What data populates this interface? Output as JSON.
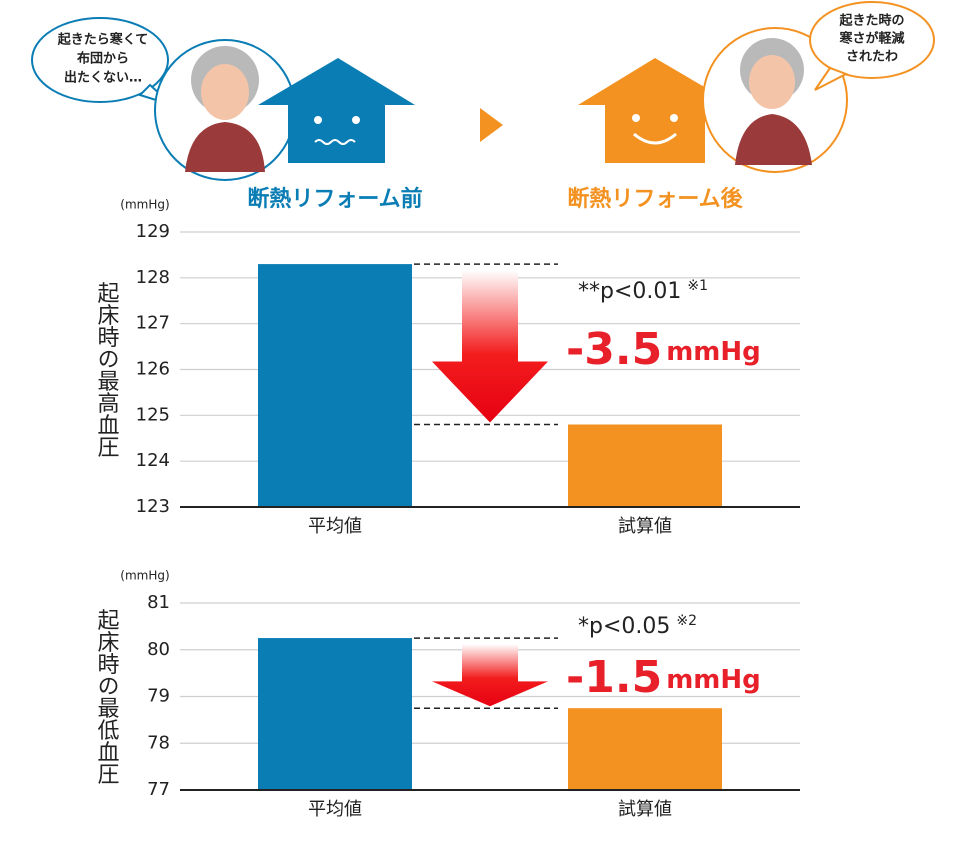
{
  "header": {
    "bubble_before": [
      "起きたら寒くて",
      "布団から",
      "出たくない…"
    ],
    "bubble_after": [
      "起きた時の",
      "寒さが軽減",
      "されたわ"
    ],
    "label_before": "断熱リフォーム前",
    "label_after": "断熱リフォーム後"
  },
  "chart_data": [
    {
      "type": "bar",
      "y_label": "起床時の最高血圧",
      "unit": "(mmHg)",
      "categories": [
        "平均値",
        "試算値"
      ],
      "values": [
        128.3,
        124.8
      ],
      "colors": [
        "#0a7db5",
        "#f39221"
      ],
      "ylim": [
        123,
        129
      ],
      "yticks": [
        123,
        124,
        125,
        126,
        127,
        128,
        129
      ],
      "grid": true,
      "annotations": {
        "p_value": "**p<0.01",
        "note": "※1",
        "difference": -3.5,
        "difference_unit": "mmHg"
      }
    },
    {
      "type": "bar",
      "y_label": "起床時の最低血圧",
      "unit": "(mmHg)",
      "categories": [
        "平均値",
        "試算値"
      ],
      "values": [
        80.25,
        78.75
      ],
      "colors": [
        "#0a7db5",
        "#f39221"
      ],
      "ylim": [
        77,
        81
      ],
      "yticks": [
        77,
        78,
        79,
        80,
        81
      ],
      "grid": true,
      "annotations": {
        "p_value": "*p<0.05",
        "note": "※2",
        "difference": -1.5,
        "difference_unit": "mmHg"
      }
    }
  ]
}
